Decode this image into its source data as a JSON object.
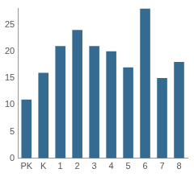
{
  "chart_data": {
    "type": "bar",
    "categories": [
      "PK",
      "K",
      "1",
      "2",
      "3",
      "4",
      "5",
      "6",
      "7",
      "8"
    ],
    "values": [
      11,
      16,
      21,
      24,
      21,
      20,
      17,
      28,
      15,
      18
    ],
    "color": "#356b90",
    "ylim": [
      0,
      28
    ],
    "yticks": [
      0,
      5,
      10,
      15,
      20,
      25
    ],
    "grid": false
  }
}
